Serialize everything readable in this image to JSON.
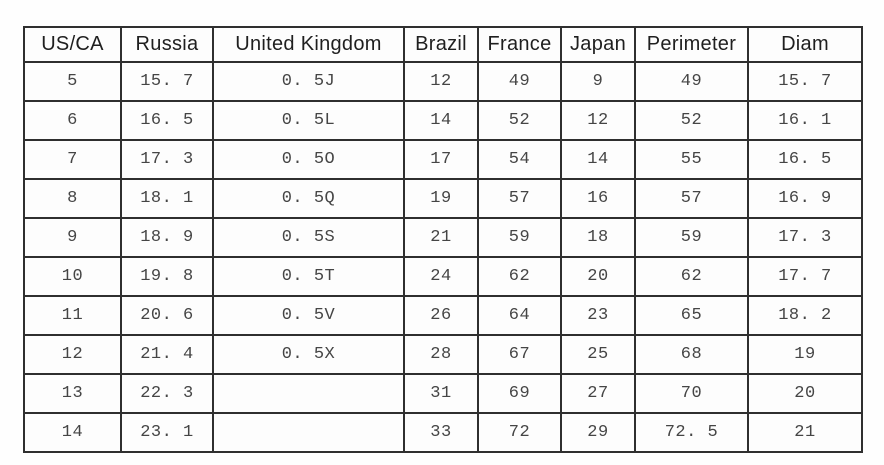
{
  "chart_data": {
    "type": "table",
    "title": "",
    "columns": [
      "US/CA",
      "Russia",
      "United Kingdom",
      "Brazil",
      "France",
      "Japan",
      "Perimeter",
      "Diam"
    ],
    "rows": [
      [
        "5",
        "15. 7",
        "0. 5J",
        "12",
        "49",
        "9",
        "49",
        "15. 7"
      ],
      [
        "6",
        "16. 5",
        "0. 5L",
        "14",
        "52",
        "12",
        "52",
        "16. 1"
      ],
      [
        "7",
        "17. 3",
        "0. 5O",
        "17",
        "54",
        "14",
        "55",
        "16. 5"
      ],
      [
        "8",
        "18. 1",
        "0. 5Q",
        "19",
        "57",
        "16",
        "57",
        "16. 9"
      ],
      [
        "9",
        "18. 9",
        "0. 5S",
        "21",
        "59",
        "18",
        "59",
        "17. 3"
      ],
      [
        "10",
        "19. 8",
        "0. 5T",
        "24",
        "62",
        "20",
        "62",
        "17. 7"
      ],
      [
        "11",
        "20. 6",
        "0. 5V",
        "26",
        "64",
        "23",
        "65",
        "18. 2"
      ],
      [
        "12",
        "21. 4",
        "0. 5X",
        "28",
        "67",
        "25",
        "68",
        "19"
      ],
      [
        "13",
        "22. 3",
        "",
        "31",
        "69",
        "27",
        "70",
        "20"
      ],
      [
        "14",
        "23. 1",
        "",
        "33",
        "72",
        "29",
        "72. 5",
        "21"
      ]
    ]
  },
  "colors": {
    "background": "#fefefe",
    "table_border": "#2f2f2f",
    "header_text": "#1f1f1f",
    "cell_text": "#454545"
  }
}
